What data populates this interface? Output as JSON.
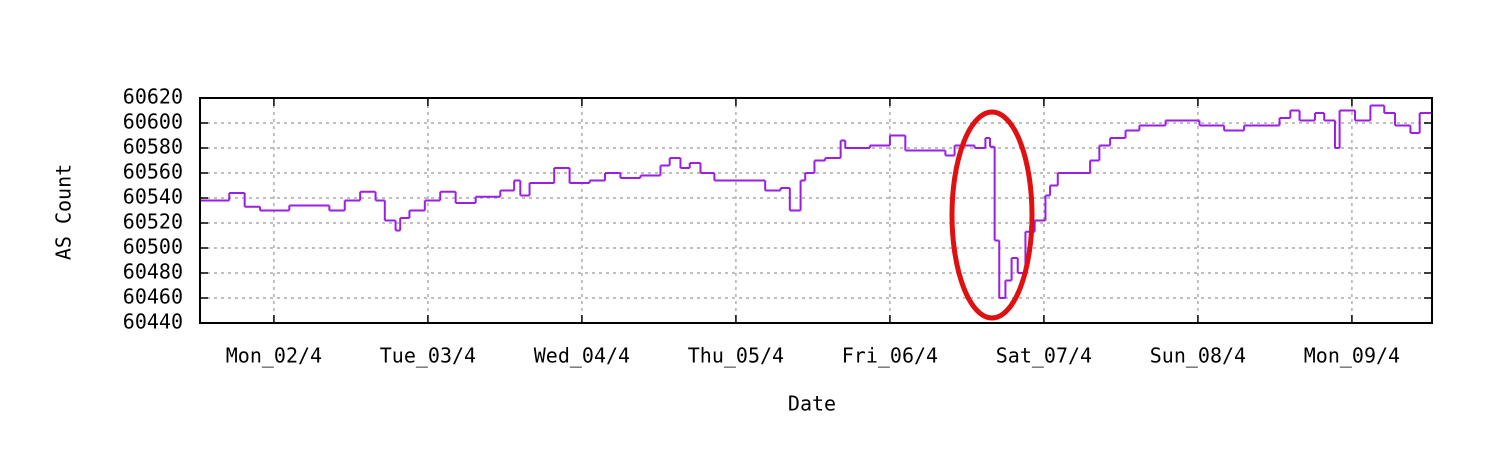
{
  "chart_data": {
    "type": "step",
    "y_label": "AS Count",
    "x_label": "Date",
    "x": [
      1.52,
      1.71,
      1.81,
      1.91,
      2.1,
      2.36,
      2.46,
      2.56,
      2.66,
      2.72,
      2.79,
      2.82,
      2.88,
      2.98,
      3.08,
      3.18,
      3.31,
      3.47,
      3.56,
      3.6,
      3.66,
      3.82,
      3.92,
      4.05,
      4.15,
      4.25,
      4.38,
      4.51,
      4.57,
      4.64,
      4.7,
      4.77,
      4.86,
      5.19,
      5.29,
      5.35,
      5.42,
      5.45,
      5.51,
      5.58,
      5.68,
      5.71,
      5.87,
      6.0,
      6.1,
      6.36,
      6.42,
      6.55,
      6.62,
      6.65,
      6.68,
      6.71,
      6.75,
      6.79,
      6.83,
      6.88,
      6.94,
      7.01,
      7.04,
      7.09,
      7.3,
      7.36,
      7.43,
      7.53,
      7.62,
      7.79,
      8.01,
      8.17,
      8.3,
      8.53,
      8.6,
      8.66,
      8.76,
      8.82,
      8.89,
      8.92,
      9.02,
      9.12,
      9.21,
      9.28,
      9.38,
      9.44
    ],
    "series": [
      {
        "name": "AS Count",
        "color": "#9a1ee6",
        "values": [
          60538,
          60544,
          60533,
          60530,
          60534,
          60530,
          60538,
          60545,
          60538,
          60522,
          60514,
          60524,
          60530,
          60538,
          60545,
          60536,
          60541,
          60546,
          60554,
          60542,
          60552,
          60564,
          60552,
          60554,
          60560,
          60556,
          60558,
          60566,
          60572,
          60564,
          60568,
          60560,
          60554,
          60546,
          60548,
          60530,
          60554,
          60560,
          60570,
          60572,
          60586,
          60580,
          60582,
          60590,
          60578,
          60574,
          60582,
          60580,
          60588,
          60581,
          60506,
          60460,
          60474,
          60492,
          60480,
          60513,
          60522,
          60542,
          60550,
          60560,
          60570,
          60582,
          60588,
          60594,
          60598,
          60602,
          60598,
          60594,
          60598,
          60604,
          60610,
          60602,
          60608,
          60602,
          60580,
          60610,
          60602,
          60614,
          60608,
          60598,
          60592,
          60608
        ]
      }
    ],
    "xlim": [
      1.52,
      9.52
    ],
    "xticks": [
      {
        "value": 2,
        "label": "Mon_02/4"
      },
      {
        "value": 3,
        "label": "Tue_03/4"
      },
      {
        "value": 4,
        "label": "Wed_04/4"
      },
      {
        "value": 5,
        "label": "Thu_05/4"
      },
      {
        "value": 6,
        "label": "Fri_06/4"
      },
      {
        "value": 7,
        "label": "Sat_07/4"
      },
      {
        "value": 8,
        "label": "Sun_08/4"
      },
      {
        "value": 9,
        "label": "Mon_09/4"
      }
    ],
    "ylim": [
      60440,
      60620
    ],
    "yticks": [
      60440,
      60460,
      60480,
      60500,
      60520,
      60540,
      60560,
      60580,
      60600,
      60620
    ],
    "grid": true
  }
}
